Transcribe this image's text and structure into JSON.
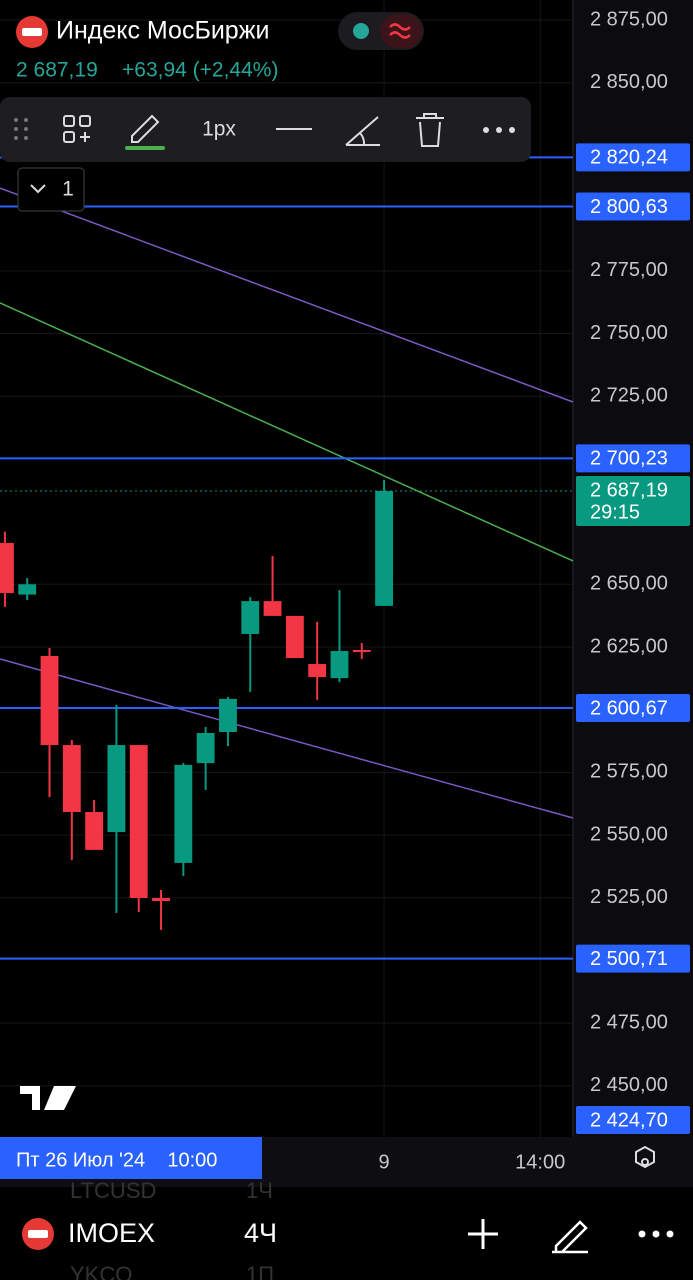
{
  "chart_data": {
    "type": "candlestick",
    "title": "Индекс МосБиржи",
    "last": {
      "value": 2687.19,
      "label": "2 687,19",
      "timer": "29:15"
    },
    "change_label": "+63,94 (+2,44%)",
    "up_color": "#089981",
    "down_color": "#f23645",
    "open": [
      2666.5,
      2645.9,
      2621.4,
      2585.9,
      2559.2,
      2551.2,
      2585.9,
      2524.9,
      2538.9,
      2578.7,
      2591.1,
      2630.2,
      2643.3,
      2637.4,
      2618.2,
      2612.6,
      2623.8,
      2641.4
    ],
    "high": [
      2671.0,
      2652.5,
      2624.6,
      2587.9,
      2564.0,
      2601.9,
      2585.9,
      2528.1,
      2578.8,
      2593.1,
      2605.1,
      2644.9,
      2661.3,
      2637.4,
      2635.0,
      2647.7,
      2626.6,
      2691.6
    ],
    "low": [
      2641.0,
      2643.7,
      2565.2,
      2540.1,
      2544.1,
      2518.9,
      2519.3,
      2512.2,
      2533.7,
      2568.0,
      2585.5,
      2607.1,
      2637.4,
      2620.6,
      2603.9,
      2611.0,
      2620.2,
      2641.4
    ],
    "close": [
      2646.5,
      2650.0,
      2585.9,
      2559.2,
      2544.1,
      2585.9,
      2524.9,
      2523.7,
      2578.0,
      2590.7,
      2604.3,
      2643.3,
      2637.4,
      2620.6,
      2613.0,
      2623.4,
      2623.0,
      2687.19
    ],
    "xlim": [
      -0.22,
      25.47
    ],
    "ylim": [
      2429.6,
      2883.0
    ],
    "yticks": [
      {
        "value": 2875,
        "label": "2 875,00"
      },
      {
        "value": 2850,
        "label": "2 850,00"
      },
      {
        "value": 2775,
        "label": "2 775,00"
      },
      {
        "value": 2750,
        "label": "2 750,00"
      },
      {
        "value": 2725,
        "label": "2 725,00"
      },
      {
        "value": 2650,
        "label": "2 650,00"
      },
      {
        "value": 2625,
        "label": "2 625,00"
      },
      {
        "value": 2575,
        "label": "2 575,00"
      },
      {
        "value": 2550,
        "label": "2 550,00"
      },
      {
        "value": 2525,
        "label": "2 525,00"
      },
      {
        "value": 2475,
        "label": "2 475,00"
      },
      {
        "value": 2450,
        "label": "2 450,00"
      }
    ],
    "xticks": [
      {
        "value": 17,
        "label": "9"
      },
      {
        "value": 24,
        "label": "14:00"
      }
    ],
    "grid": true,
    "levels": [
      {
        "value": 2820.24,
        "label": "2 820,24"
      },
      {
        "value": 2800.63,
        "label": "2 800,63"
      },
      {
        "value": 2700.23,
        "label": "2 700,23"
      },
      {
        "value": 2600.67,
        "label": "2 600,67"
      },
      {
        "value": 2500.71,
        "label": "2 500,71"
      },
      {
        "value": 2424.7,
        "label": "2 424,70"
      }
    ],
    "level_color": "#2962ff",
    "trend_lines": [
      {
        "color": "#7e57c2",
        "values": [
          2808.0,
          2722.7
        ]
      },
      {
        "color": "#4caf50",
        "values": [
          2762.2,
          2659.3
        ]
      },
      {
        "color": "#7e57c2",
        "values": [
          2620.2,
          2556.8
        ]
      }
    ],
    "time_label": "Пт 26 Июл '24    10:00"
  },
  "toolbar": {
    "width_label": "1px",
    "count_label": "1"
  },
  "bottom_bar": {
    "symbol": "IMOEX",
    "interval": "4Ч",
    "ghost": [
      "LTCUSD",
      "1Ч",
      "YKCO",
      "1П"
    ]
  }
}
